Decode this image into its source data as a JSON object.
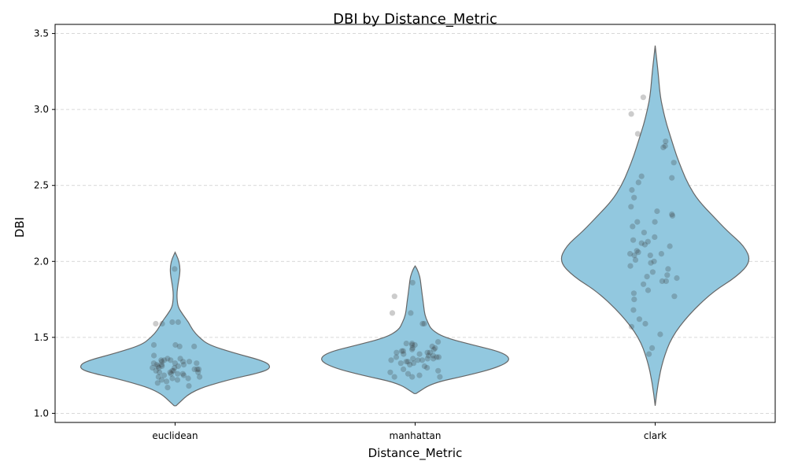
{
  "chart_data": {
    "type": "violin",
    "title": "DBI by Distance_Metric",
    "xlabel": "Distance_Metric",
    "ylabel": "DBI",
    "categories": [
      "euclidean",
      "manhattan",
      "clark"
    ],
    "ylim": [
      0.94,
      3.56
    ],
    "yticks": [
      1.0,
      1.5,
      2.0,
      2.5,
      3.0,
      3.5
    ],
    "ytick_labels": [
      "1.0",
      "1.5",
      "2.0",
      "2.5",
      "3.0",
      "3.5"
    ],
    "grid": "y-dashed",
    "colors": {
      "violin_fill": "#92c8df",
      "violin_edge": "#666666",
      "points": "#333333",
      "grid": "#cccccc"
    },
    "violins": [
      {
        "category": "euclidean",
        "y_min": 1.05,
        "y_max": 2.06,
        "density_profile": [
          [
            1.05,
            0.01
          ],
          [
            1.15,
            0.18
          ],
          [
            1.22,
            0.55
          ],
          [
            1.27,
            0.9
          ],
          [
            1.3,
            1.0
          ],
          [
            1.34,
            0.95
          ],
          [
            1.4,
            0.6
          ],
          [
            1.45,
            0.35
          ],
          [
            1.5,
            0.25
          ],
          [
            1.55,
            0.18
          ],
          [
            1.6,
            0.14
          ],
          [
            1.65,
            0.08
          ],
          [
            1.7,
            0.03
          ],
          [
            1.75,
            0.02
          ],
          [
            1.8,
            0.02
          ],
          [
            1.85,
            0.03
          ],
          [
            1.92,
            0.05
          ],
          [
            1.97,
            0.05
          ],
          [
            2.02,
            0.03
          ],
          [
            2.06,
            0.0
          ]
        ],
        "points": [
          1.95,
          1.6,
          1.59,
          1.59,
          1.6,
          1.45,
          1.45,
          1.44,
          1.44,
          1.35,
          1.35,
          1.34,
          1.34,
          1.33,
          1.33,
          1.32,
          1.32,
          1.31,
          1.31,
          1.3,
          1.3,
          1.3,
          1.29,
          1.29,
          1.28,
          1.28,
          1.27,
          1.27,
          1.26,
          1.26,
          1.25,
          1.25,
          1.24,
          1.24,
          1.23,
          1.22,
          1.22,
          1.21,
          1.2,
          1.18,
          1.17,
          1.36,
          1.38,
          1.33,
          1.31,
          1.29,
          1.28,
          1.34,
          1.36,
          1.27,
          1.23,
          1.26,
          1.32,
          1.35
        ]
      },
      {
        "category": "manhattan",
        "y_min": 1.13,
        "y_max": 1.97,
        "density_profile": [
          [
            1.13,
            0.01
          ],
          [
            1.2,
            0.18
          ],
          [
            1.25,
            0.55
          ],
          [
            1.3,
            0.85
          ],
          [
            1.35,
            1.0
          ],
          [
            1.4,
            0.92
          ],
          [
            1.45,
            0.6
          ],
          [
            1.5,
            0.3
          ],
          [
            1.55,
            0.17
          ],
          [
            1.6,
            0.13
          ],
          [
            1.65,
            0.1
          ],
          [
            1.7,
            0.09
          ],
          [
            1.75,
            0.08
          ],
          [
            1.8,
            0.07
          ],
          [
            1.85,
            0.06
          ],
          [
            1.9,
            0.05
          ],
          [
            1.95,
            0.02
          ],
          [
            1.97,
            0.0
          ]
        ],
        "points": [
          1.86,
          1.77,
          1.66,
          1.66,
          1.59,
          1.59,
          1.47,
          1.46,
          1.46,
          1.45,
          1.45,
          1.44,
          1.43,
          1.42,
          1.41,
          1.41,
          1.4,
          1.4,
          1.39,
          1.38,
          1.38,
          1.37,
          1.37,
          1.36,
          1.36,
          1.35,
          1.35,
          1.35,
          1.34,
          1.34,
          1.33,
          1.32,
          1.31,
          1.3,
          1.29,
          1.28,
          1.27,
          1.26,
          1.25,
          1.24,
          1.24,
          1.24,
          1.36,
          1.42,
          1.39,
          1.33,
          1.37,
          1.4,
          1.43
        ]
      },
      {
        "category": "clark",
        "y_min": 1.05,
        "y_max": 3.42,
        "density_profile": [
          [
            1.05,
            0.0
          ],
          [
            1.2,
            0.03
          ],
          [
            1.35,
            0.08
          ],
          [
            1.5,
            0.17
          ],
          [
            1.65,
            0.35
          ],
          [
            1.8,
            0.6
          ],
          [
            1.9,
            0.85
          ],
          [
            2.0,
            1.0
          ],
          [
            2.1,
            0.93
          ],
          [
            2.2,
            0.75
          ],
          [
            2.3,
            0.6
          ],
          [
            2.4,
            0.45
          ],
          [
            2.5,
            0.35
          ],
          [
            2.6,
            0.28
          ],
          [
            2.7,
            0.22
          ],
          [
            2.8,
            0.17
          ],
          [
            2.9,
            0.12
          ],
          [
            3.0,
            0.08
          ],
          [
            3.1,
            0.05
          ],
          [
            3.25,
            0.03
          ],
          [
            3.42,
            0.0
          ]
        ],
        "points": [
          3.08,
          2.97,
          2.84,
          2.79,
          2.76,
          2.75,
          2.65,
          2.56,
          2.55,
          2.52,
          2.47,
          2.42,
          2.36,
          2.33,
          2.31,
          2.3,
          2.26,
          2.26,
          2.23,
          2.19,
          2.16,
          2.14,
          2.13,
          2.12,
          2.11,
          2.1,
          2.07,
          2.06,
          2.05,
          2.05,
          2.04,
          2.04,
          2.01,
          2.0,
          1.99,
          1.97,
          1.95,
          1.93,
          1.91,
          1.9,
          1.89,
          1.87,
          1.87,
          1.85,
          1.81,
          1.79,
          1.77,
          1.75,
          1.68,
          1.62,
          1.59,
          1.57,
          1.52,
          1.43,
          1.39
        ]
      }
    ]
  }
}
